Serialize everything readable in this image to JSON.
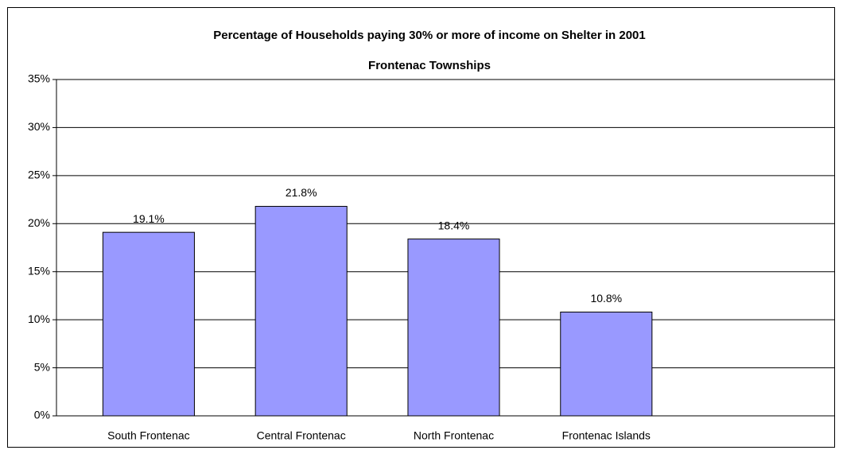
{
  "chart_data": {
    "type": "bar",
    "title": "Percentage of Households paying 30% or more of income on Shelter in 2001",
    "subtitle": "Frontenac Townships",
    "categories": [
      "South Frontenac",
      "Central Frontenac",
      "North Frontenac",
      "Frontenac Islands",
      null
    ],
    "values": [
      19.1,
      21.8,
      18.4,
      10.8,
      null
    ],
    "value_labels": [
      "19.1%",
      "21.8%",
      "18.4%",
      "10.8%",
      null
    ],
    "color": "#9999ff",
    "ylim": [
      0,
      35
    ],
    "yticks": [
      {
        "value": 0,
        "label": "0%"
      },
      {
        "value": 5,
        "label": "5%"
      },
      {
        "value": 10,
        "label": "10%"
      },
      {
        "value": 15,
        "label": "15%"
      },
      {
        "value": 20,
        "label": "20%"
      },
      {
        "value": 25,
        "label": "25%"
      },
      {
        "value": 30,
        "label": "30%"
      },
      {
        "value": 35,
        "label": "35%"
      }
    ],
    "grid": true
  }
}
